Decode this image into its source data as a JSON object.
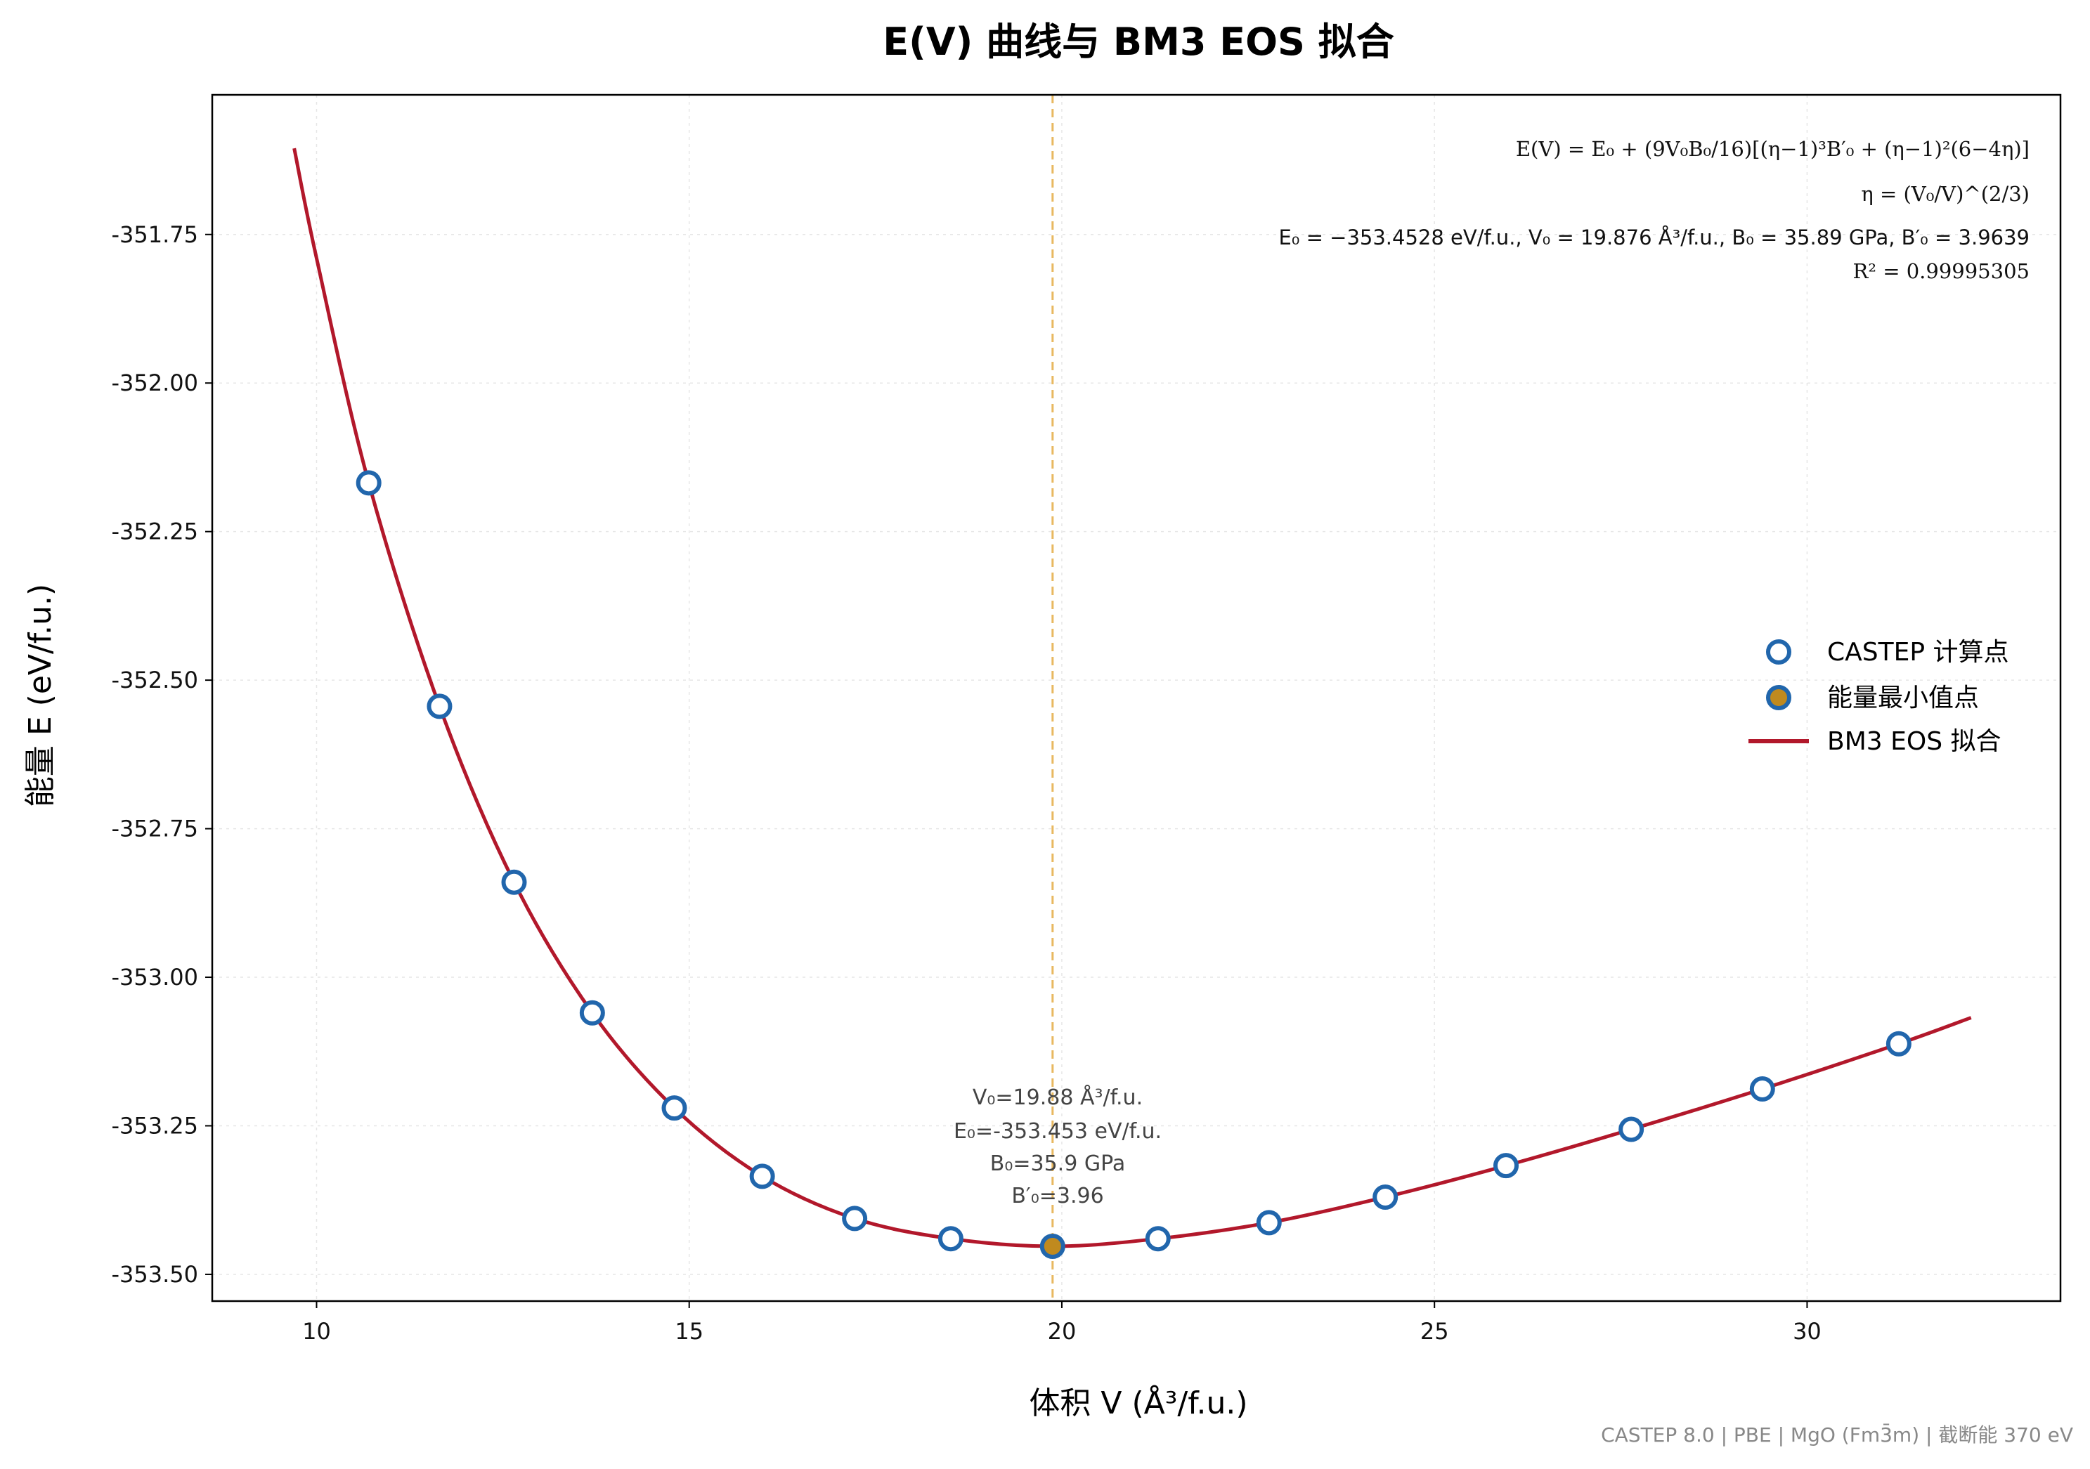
{
  "title": "E(V) 曲线与 BM3 EOS 拟合",
  "xlabel": "体积 V (Å³/f.u.)",
  "ylabel": "能量 E (eV/f.u.)",
  "footer": "CASTEP 8.0 | PBE | MgO (Fm3̄m) | 截断能 370 eV",
  "fit_box": {
    "formula": "E(V) = E₀ + (9V₀B₀/16)[(η−1)³B′₀ + (η−1)²(6−4η)]",
    "eta": "η = (V₀/V)^(2/3)",
    "params": "E₀ = −353.4528 eV/f.u.,  V₀ = 19.876 Å³/f.u.,  B₀ = 35.89 GPa,  B′₀ = 3.9639",
    "r2": "R² = 0.99995305"
  },
  "min_annotation": {
    "v0": "V₀=19.88 Å³/f.u.",
    "e0": "E₀=-353.453 eV/f.u.",
    "b0": "B₀=35.9 GPa",
    "bp": "B′₀=3.96"
  },
  "legend": {
    "points": "CASTEP 计算点",
    "minimum": "能量最小值点",
    "fit": "BM3 EOS 拟合"
  },
  "colors": {
    "points": "#2166ac",
    "minimum_fill": "#c08a1e",
    "fit": "#b2182b",
    "vline": "#e8b860",
    "footer": "#888888"
  },
  "chart_data": {
    "type": "scatter",
    "xlim": [
      8.6,
      33.4
    ],
    "ylim": [
      -353.545,
      -351.515
    ],
    "x_ticks": [
      10,
      15,
      20,
      25,
      30
    ],
    "y_ticks": [
      -353.5,
      -353.25,
      -353.0,
      -352.75,
      -352.5,
      -352.25,
      -352.0,
      -351.75
    ],
    "y_tick_labels": [
      "-353.50",
      "-353.25",
      "-353.00",
      "-352.75",
      "-352.50",
      "-352.25",
      "-352.00",
      "-351.75"
    ],
    "grid": true,
    "legend_position": "center-right",
    "series": [
      {
        "name": "CASTEP 计算点",
        "type": "scatter",
        "x": [
          10.7,
          11.65,
          12.65,
          13.7,
          14.8,
          15.98,
          17.22,
          18.51,
          21.29,
          22.78,
          24.34,
          25.96,
          27.64,
          29.4,
          31.23
        ],
        "y": [
          -352.168,
          -352.544,
          -352.84,
          -353.06,
          -353.22,
          -353.335,
          -353.406,
          -353.44,
          -353.44,
          -353.413,
          -353.37,
          -353.317,
          -353.256,
          -353.188,
          -353.112
        ]
      },
      {
        "name": "能量最小值点",
        "type": "scatter",
        "x": [
          19.876
        ],
        "y": [
          -353.4528
        ]
      },
      {
        "name": "BM3 EOS 拟合",
        "type": "line",
        "x": [
          9.7,
          10.0,
          10.7,
          11.65,
          12.65,
          13.7,
          14.8,
          15.98,
          17.22,
          18.51,
          19.876,
          21.29,
          22.78,
          24.34,
          25.96,
          27.64,
          29.4,
          31.23,
          32.2
        ],
        "y": [
          -351.605,
          -351.79,
          -352.168,
          -352.544,
          -352.84,
          -353.06,
          -353.22,
          -353.335,
          -353.406,
          -353.44,
          -353.4528,
          -353.44,
          -353.413,
          -353.37,
          -353.317,
          -353.256,
          -353.188,
          -353.112,
          -353.068
        ]
      }
    ],
    "vline_x": 19.876
  }
}
